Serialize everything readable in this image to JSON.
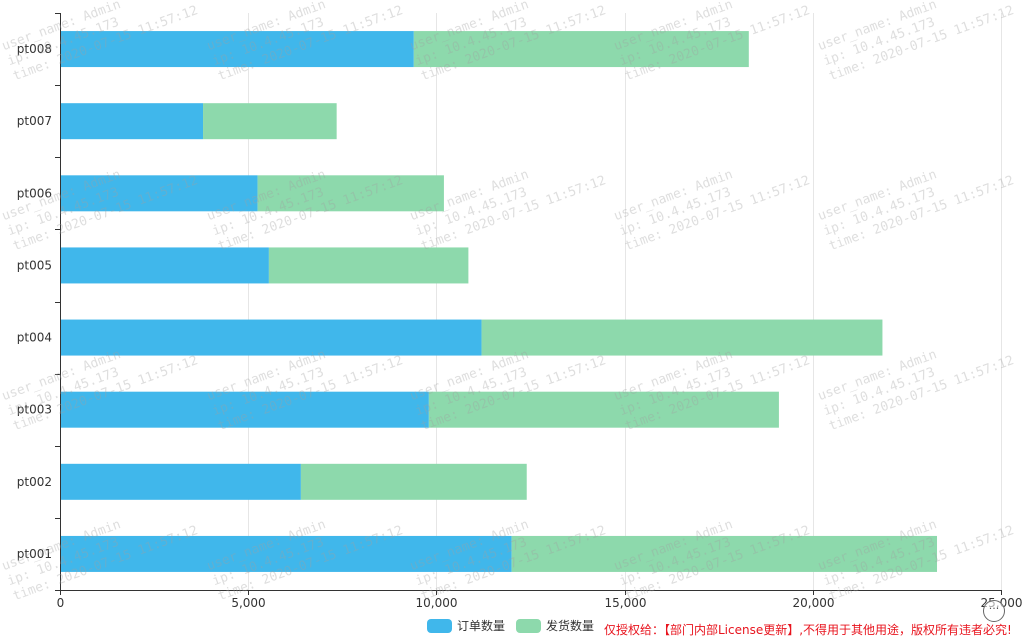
{
  "chart_data": {
    "type": "bar",
    "orientation": "horizontal",
    "stacked": true,
    "categories": [
      "pt001",
      "pt002",
      "pt003",
      "pt004",
      "pt005",
      "pt006",
      "pt007",
      "pt008"
    ],
    "series": [
      {
        "name": "订单数量",
        "color": "#40b7eb",
        "values": [
          12000,
          6400,
          9800,
          11200,
          5550,
          5250,
          3800,
          9400
        ]
      },
      {
        "name": "发货数量",
        "color": "#8dd9ac",
        "values": [
          11300,
          6000,
          9300,
          10650,
          5300,
          4950,
          3550,
          8900
        ]
      }
    ],
    "xlim": [
      0,
      25000
    ],
    "xticks": [
      0,
      5000,
      10000,
      15000,
      20000,
      25000
    ],
    "xtick_labels": [
      "0",
      "5,000",
      "10,000",
      "15,000",
      "20,000",
      "25,000"
    ],
    "grid": true,
    "legend_position": "bottom-center"
  },
  "license_text": "仅授权给：【部门内部License更新】,不得用于其他用途，版权所有违者必究!",
  "watermark": {
    "user_name": "user_name: Admin",
    "ip": "ip: 10.4.45.173",
    "time": "time: 2020-07-15 11:57:12"
  },
  "more_button": {
    "icon": "more-icon",
    "label": "···"
  }
}
